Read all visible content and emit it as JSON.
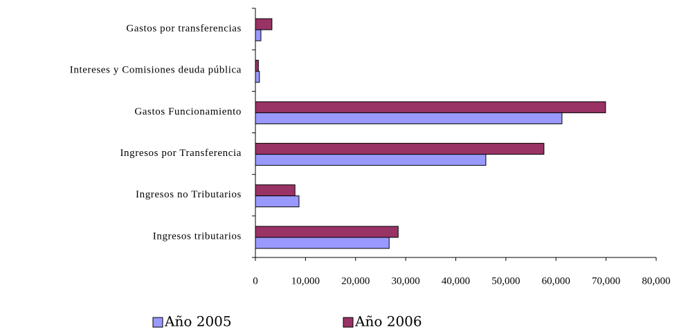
{
  "chart_data": {
    "type": "bar",
    "orientation": "horizontal",
    "categories": [
      "Ingresos tributarios",
      "Ingresos no Tributarios",
      "Ingresos por Transferencia",
      "Gastos Funcionamiento",
      "Intereses y Comisiones deuda pública",
      "Gastos por transferencias"
    ],
    "series": [
      {
        "name": "Año 2005",
        "color": "#9999ff",
        "values": [
          26700,
          8700,
          46000,
          61200,
          800,
          1100
        ]
      },
      {
        "name": "Año 2006",
        "color": "#993366",
        "values": [
          28500,
          7900,
          57600,
          69900,
          600,
          3300
        ]
      }
    ],
    "xlim": [
      0,
      80000
    ],
    "xticks": [
      0,
      {
        "value": 10000,
        "label": "10,000"
      },
      {
        "value": 20000,
        "label": "20,000"
      },
      {
        "value": 30000,
        "label": "30,000"
      },
      {
        "value": 40000,
        "label": "40,000"
      },
      {
        "value": 50000,
        "label": "50,000"
      },
      {
        "value": 60000,
        "label": "60,000"
      },
      {
        "value": 70000,
        "label": "70,000"
      },
      {
        "value": 80000,
        "label": "80,000"
      }
    ],
    "legend": "bottom"
  }
}
